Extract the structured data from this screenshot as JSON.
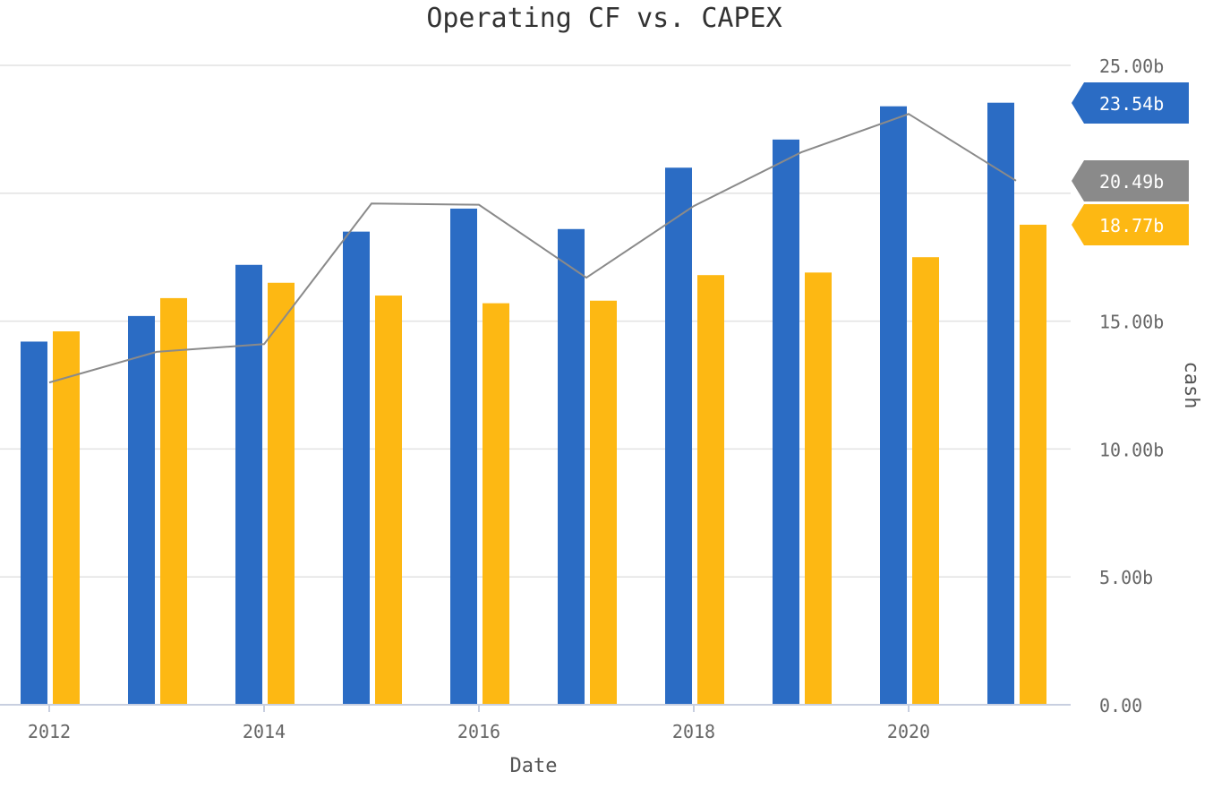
{
  "chart_data": {
    "type": "bar",
    "title": "Operating CF vs. CAPEX",
    "xlabel": "Date",
    "ylabel": "cash",
    "ylim": [
      0,
      25
    ],
    "y_axis_side": "right",
    "y_ticks": [
      0,
      5,
      10,
      15,
      20,
      25
    ],
    "y_tick_labels": [
      "0.00",
      "5.00b",
      "10.00b",
      "15.00b",
      "",
      "25.00b"
    ],
    "x_ticks": [
      2012,
      2014,
      2016,
      2018,
      2020
    ],
    "x_tick_labels": [
      "2012",
      "2014",
      "2016",
      "2018",
      "2020"
    ],
    "categories": [
      2012,
      2013,
      2014,
      2015,
      2016,
      2017,
      2018,
      2019,
      2020,
      2021
    ],
    "grid": true,
    "legend": "none",
    "series": [
      {
        "kind": "bar",
        "color": "#2b6cc4",
        "values": [
          14.2,
          15.2,
          17.2,
          18.5,
          19.4,
          18.6,
          21.0,
          22.1,
          23.4,
          23.54
        ]
      },
      {
        "kind": "bar",
        "color": "#fdb813",
        "values": [
          14.6,
          15.9,
          16.5,
          16.0,
          15.7,
          15.8,
          16.8,
          16.9,
          17.5,
          18.77
        ]
      },
      {
        "kind": "line",
        "color": "#8a8a8a",
        "values": [
          12.6,
          13.8,
          14.1,
          19.6,
          19.55,
          16.7,
          19.5,
          21.6,
          23.1,
          20.49
        ]
      }
    ],
    "last_value_tags": [
      {
        "label": "23.54b",
        "color": "#2b6cc4"
      },
      {
        "label": "20.49b",
        "color": "#8a8a8a"
      },
      {
        "label": "18.77b",
        "color": "#fdb813"
      }
    ]
  }
}
